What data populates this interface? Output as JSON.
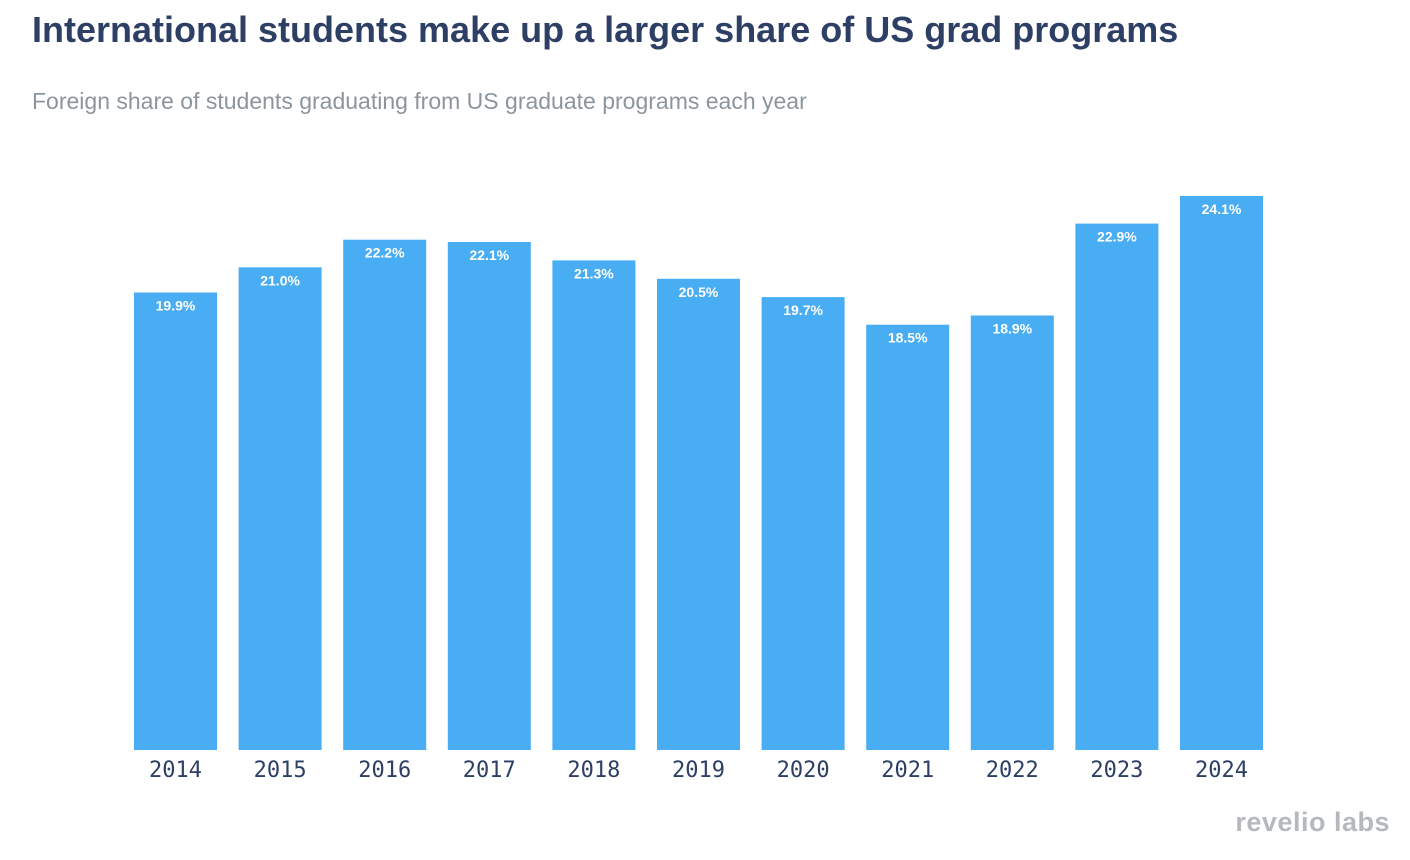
{
  "colors": {
    "bar": "#49adf4",
    "title": "#2e3f66",
    "subtitle": "#8c959c",
    "logo": "#b5b9bd"
  },
  "brand": {
    "logo_text": "revelio labs"
  },
  "chart_data": {
    "type": "bar",
    "title": "International students make up a larger share of US grad programs",
    "subtitle": "Foreign share of students graduating from US graduate programs each year",
    "xlabel": "",
    "ylabel": "",
    "categories": [
      "2014",
      "2015",
      "2016",
      "2017",
      "2018",
      "2019",
      "2020",
      "2021",
      "2022",
      "2023",
      "2024"
    ],
    "values": [
      19.9,
      21.0,
      22.2,
      22.1,
      21.3,
      20.5,
      19.7,
      18.5,
      18.9,
      22.9,
      24.1
    ],
    "value_labels": [
      "19.9%",
      "21.0%",
      "22.2%",
      "22.1%",
      "21.3%",
      "20.5%",
      "19.7%",
      "18.5%",
      "18.9%",
      "22.9%",
      "24.1%"
    ],
    "ylim": [
      0,
      24.1
    ],
    "grid": false,
    "legend": "none"
  }
}
